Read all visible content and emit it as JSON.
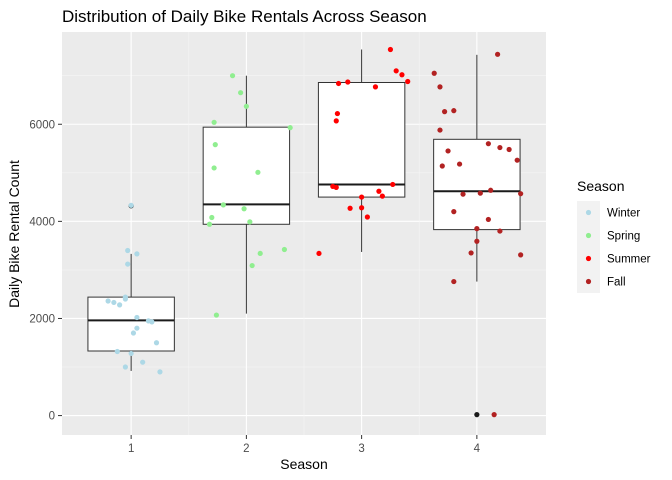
{
  "chart_data": {
    "type": "boxplot with jittered points",
    "title": "Distribution of Daily Bike Rentals Across Season",
    "xlabel": "Season",
    "ylabel": "Daily Bike Rental Count",
    "categories": [
      "1",
      "2",
      "3",
      "4"
    ],
    "ylim": [
      -400,
      7900
    ],
    "yticks": [
      0,
      2000,
      4000,
      6000
    ],
    "grid": true,
    "legend": {
      "title": "Season",
      "position": "right",
      "entries": [
        {
          "label": "Winter",
          "color": "#add8e6"
        },
        {
          "label": "Spring",
          "color": "#90ee90"
        },
        {
          "label": "Summer",
          "color": "#ff0000"
        },
        {
          "label": "Fall",
          "color": "#b22222"
        }
      ]
    },
    "boxes": [
      {
        "category": "1",
        "min": 920,
        "q1": 1330,
        "median": 1960,
        "q3": 2440,
        "max": 3330,
        "outliers": [
          4320
        ]
      },
      {
        "category": "2",
        "min": 2100,
        "q1": 3940,
        "median": 4350,
        "q3": 5940,
        "max": 7000,
        "outliers": []
      },
      {
        "category": "3",
        "min": 3370,
        "q1": 4500,
        "median": 4760,
        "q3": 6860,
        "max": 7540,
        "outliers": []
      },
      {
        "category": "4",
        "min": 2760,
        "q1": 3830,
        "median": 4620,
        "q3": 5690,
        "max": 7430,
        "outliers": [
          20
        ]
      }
    ],
    "series": [
      {
        "name": "Winter",
        "points": [
          [
            0.85,
            2330
          ],
          [
            0.9,
            2280
          ],
          [
            0.88,
            1320
          ],
          [
            0.95,
            1000
          ],
          [
            0.95,
            2400
          ],
          [
            0.97,
            3120
          ],
          [
            0.97,
            3400
          ],
          [
            1.0,
            4330
          ],
          [
            1.02,
            1700
          ],
          [
            1.0,
            1280
          ],
          [
            1.05,
            1800
          ],
          [
            1.05,
            2020
          ],
          [
            1.1,
            1100
          ],
          [
            1.05,
            3330
          ],
          [
            1.15,
            1950
          ],
          [
            1.18,
            1930
          ],
          [
            1.22,
            1500
          ],
          [
            1.25,
            900
          ],
          [
            0.8,
            2360
          ],
          [
            0.95,
            2440
          ]
        ]
      },
      {
        "name": "Spring",
        "points": [
          [
            1.73,
            5580
          ],
          [
            1.68,
            3940
          ],
          [
            1.7,
            4080
          ],
          [
            1.72,
            5100
          ],
          [
            1.74,
            2070
          ],
          [
            1.72,
            6040
          ],
          [
            1.8,
            4340
          ],
          [
            1.88,
            7000
          ],
          [
            1.95,
            6650
          ],
          [
            1.98,
            4260
          ],
          [
            2.0,
            6370
          ],
          [
            2.03,
            3990
          ],
          [
            2.05,
            3090
          ],
          [
            2.1,
            5010
          ],
          [
            2.12,
            3340
          ],
          [
            2.33,
            3420
          ],
          [
            2.38,
            5930
          ]
        ]
      },
      {
        "name": "Summer",
        "points": [
          [
            2.63,
            3340
          ],
          [
            2.75,
            4720
          ],
          [
            2.78,
            6070
          ],
          [
            2.79,
            6220
          ],
          [
            2.8,
            6840
          ],
          [
            2.78,
            4700
          ],
          [
            2.88,
            6870
          ],
          [
            2.9,
            4270
          ],
          [
            3.0,
            4500
          ],
          [
            3.0,
            4280
          ],
          [
            3.05,
            4090
          ],
          [
            3.12,
            6770
          ],
          [
            3.15,
            4620
          ],
          [
            3.18,
            4520
          ],
          [
            3.25,
            7540
          ],
          [
            3.27,
            4760
          ],
          [
            3.3,
            7100
          ],
          [
            3.35,
            7020
          ],
          [
            3.4,
            6880
          ]
        ]
      },
      {
        "name": "Fall",
        "points": [
          [
            3.63,
            7050
          ],
          [
            3.68,
            6770
          ],
          [
            3.68,
            5880
          ],
          [
            3.7,
            5140
          ],
          [
            3.72,
            6260
          ],
          [
            3.75,
            5450
          ],
          [
            3.8,
            6280
          ],
          [
            3.8,
            4200
          ],
          [
            3.8,
            2760
          ],
          [
            3.85,
            5180
          ],
          [
            3.88,
            4560
          ],
          [
            3.95,
            3350
          ],
          [
            4.0,
            3850
          ],
          [
            4.0,
            3590
          ],
          [
            4.03,
            4580
          ],
          [
            4.1,
            4040
          ],
          [
            4.12,
            4640
          ],
          [
            4.1,
            5600
          ],
          [
            4.2,
            5520
          ],
          [
            4.2,
            3800
          ],
          [
            4.28,
            5480
          ],
          [
            4.35,
            5260
          ],
          [
            4.38,
            4570
          ],
          [
            4.38,
            3310
          ],
          [
            4.15,
            20
          ],
          [
            4.18,
            7440
          ]
        ]
      }
    ]
  }
}
